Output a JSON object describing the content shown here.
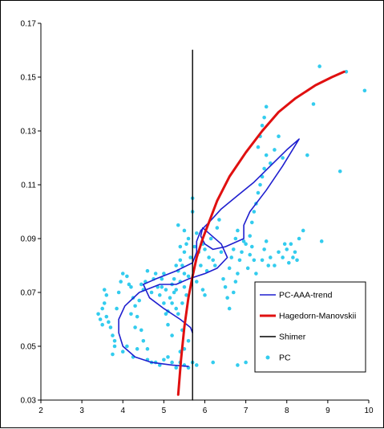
{
  "chart_data": {
    "type": "scatter",
    "title": "",
    "xlabel": "",
    "ylabel": "",
    "xlim": [
      2,
      10
    ],
    "ylim": [
      0.03,
      0.17
    ],
    "x_ticks": [
      "2",
      "3",
      "4",
      "5",
      "6",
      "7",
      "8",
      "9",
      "10"
    ],
    "y_ticks": [
      "0.03",
      "0.05",
      "0.07",
      "0.09",
      "0.11",
      "0.13",
      "0.15",
      "0.17"
    ],
    "grid": false,
    "legend_position": "lower-right",
    "colors": {
      "pc_aaa_trend": "#1f1fcf",
      "hagedorn": "#e01010",
      "shimer": "#000000",
      "pc": "#33ccee"
    },
    "series": [
      {
        "name": "PC-AAA-trend",
        "type": "line",
        "points": [
          [
            5.6,
            0.0425
          ],
          [
            5.2,
            0.043
          ],
          [
            4.7,
            0.044
          ],
          [
            4.3,
            0.046
          ],
          [
            4.0,
            0.05
          ],
          [
            3.9,
            0.055
          ],
          [
            3.9,
            0.06
          ],
          [
            4.05,
            0.065
          ],
          [
            4.4,
            0.07
          ],
          [
            4.9,
            0.073
          ],
          [
            5.3,
            0.073
          ],
          [
            5.6,
            0.075
          ],
          [
            6.0,
            0.077
          ],
          [
            6.3,
            0.079
          ],
          [
            6.55,
            0.083
          ],
          [
            6.4,
            0.088
          ],
          [
            6.1,
            0.092
          ],
          [
            5.95,
            0.094
          ],
          [
            5.9,
            0.091
          ],
          [
            6.0,
            0.088
          ],
          [
            6.2,
            0.086
          ],
          [
            6.5,
            0.087
          ],
          [
            6.8,
            0.089
          ],
          [
            6.95,
            0.09
          ],
          [
            6.95,
            0.095
          ],
          [
            7.1,
            0.1
          ],
          [
            7.5,
            0.108
          ],
          [
            7.9,
            0.117
          ],
          [
            8.3,
            0.127
          ],
          [
            8.0,
            0.123
          ],
          [
            7.6,
            0.117
          ],
          [
            7.2,
            0.111
          ],
          [
            6.8,
            0.106
          ],
          [
            6.4,
            0.101
          ],
          [
            6.1,
            0.096
          ],
          [
            5.9,
            0.093
          ],
          [
            5.8,
            0.089
          ],
          [
            5.8,
            0.085
          ],
          [
            5.7,
            0.081
          ],
          [
            5.3,
            0.078
          ],
          [
            4.8,
            0.075
          ],
          [
            4.5,
            0.073
          ],
          [
            4.65,
            0.068
          ],
          [
            5.0,
            0.064
          ],
          [
            5.4,
            0.06
          ],
          [
            5.65,
            0.057
          ],
          [
            5.7,
            0.055
          ]
        ]
      },
      {
        "name": "Hagedorn-Manovskii",
        "type": "line",
        "points": [
          [
            5.35,
            0.032
          ],
          [
            5.42,
            0.045
          ],
          [
            5.5,
            0.057
          ],
          [
            5.6,
            0.068
          ],
          [
            5.7,
            0.076
          ],
          [
            5.8,
            0.083
          ],
          [
            5.95,
            0.09
          ],
          [
            6.1,
            0.096
          ],
          [
            6.3,
            0.104
          ],
          [
            6.6,
            0.113
          ],
          [
            7.0,
            0.122
          ],
          [
            7.4,
            0.13
          ],
          [
            7.8,
            0.137
          ],
          [
            8.2,
            0.142
          ],
          [
            8.7,
            0.147
          ],
          [
            9.1,
            0.15
          ],
          [
            9.4,
            0.152
          ]
        ]
      },
      {
        "name": "Shimer",
        "type": "line",
        "points": [
          [
            5.7,
            0.03
          ],
          [
            5.7,
            0.16
          ]
        ]
      },
      {
        "name": "PC",
        "type": "scatter",
        "points": [
          [
            3.4,
            0.062
          ],
          [
            3.45,
            0.06
          ],
          [
            3.5,
            0.058
          ],
          [
            3.55,
            0.066
          ],
          [
            3.6,
            0.069
          ],
          [
            3.55,
            0.071
          ],
          [
            3.6,
            0.061
          ],
          [
            3.7,
            0.057
          ],
          [
            3.75,
            0.054
          ],
          [
            3.8,
            0.05
          ],
          [
            3.75,
            0.047
          ],
          [
            3.8,
            0.052
          ],
          [
            3.85,
            0.064
          ],
          [
            3.9,
            0.07
          ],
          [
            3.95,
            0.074
          ],
          [
            4.0,
            0.077
          ],
          [
            4.1,
            0.076
          ],
          [
            4.15,
            0.073
          ],
          [
            4.2,
            0.072
          ],
          [
            4.25,
            0.068
          ],
          [
            4.3,
            0.065
          ],
          [
            4.2,
            0.062
          ],
          [
            4.1,
            0.05
          ],
          [
            4.0,
            0.048
          ],
          [
            4.3,
            0.057
          ],
          [
            4.35,
            0.061
          ],
          [
            4.4,
            0.067
          ],
          [
            4.45,
            0.073
          ],
          [
            4.5,
            0.071
          ],
          [
            4.55,
            0.074
          ],
          [
            4.6,
            0.078
          ],
          [
            4.7,
            0.07
          ],
          [
            4.75,
            0.075
          ],
          [
            4.8,
            0.077
          ],
          [
            4.85,
            0.072
          ],
          [
            4.9,
            0.069
          ],
          [
            4.95,
            0.075
          ],
          [
            5.0,
            0.077
          ],
          [
            5.0,
            0.066
          ],
          [
            5.05,
            0.062
          ],
          [
            5.1,
            0.058
          ],
          [
            5.2,
            0.054
          ],
          [
            5.15,
            0.068
          ],
          [
            5.2,
            0.073
          ],
          [
            5.25,
            0.075
          ],
          [
            5.3,
            0.071
          ],
          [
            5.35,
            0.078
          ],
          [
            5.4,
            0.074
          ],
          [
            5.45,
            0.066
          ],
          [
            5.5,
            0.072
          ],
          [
            5.55,
            0.069
          ],
          [
            5.6,
            0.076
          ],
          [
            5.3,
            0.08
          ],
          [
            5.4,
            0.082
          ],
          [
            5.5,
            0.085
          ],
          [
            5.55,
            0.088
          ],
          [
            5.6,
            0.09
          ],
          [
            5.65,
            0.083
          ],
          [
            5.5,
            0.093
          ],
          [
            5.35,
            0.095
          ],
          [
            5.4,
            0.087
          ],
          [
            5.7,
            0.1
          ],
          [
            5.7,
            0.105
          ],
          [
            5.8,
            0.092
          ],
          [
            5.85,
            0.085
          ],
          [
            5.9,
            0.08
          ],
          [
            5.95,
            0.088
          ],
          [
            6.0,
            0.086
          ],
          [
            6.05,
            0.078
          ],
          [
            6.1,
            0.083
          ],
          [
            6.15,
            0.09
          ],
          [
            6.2,
            0.082
          ],
          [
            6.25,
            0.08
          ],
          [
            6.3,
            0.094
          ],
          [
            6.35,
            0.097
          ],
          [
            6.4,
            0.085
          ],
          [
            6.45,
            0.075
          ],
          [
            6.5,
            0.072
          ],
          [
            6.55,
            0.068
          ],
          [
            6.6,
            0.064
          ],
          [
            6.7,
            0.07
          ],
          [
            6.75,
            0.074
          ],
          [
            6.8,
            0.077
          ],
          [
            6.85,
            0.082
          ],
          [
            6.9,
            0.085
          ],
          [
            6.95,
            0.089
          ],
          [
            7.0,
            0.088
          ],
          [
            7.05,
            0.079
          ],
          [
            7.1,
            0.084
          ],
          [
            7.15,
            0.096
          ],
          [
            7.2,
            0.1
          ],
          [
            7.25,
            0.103
          ],
          [
            7.3,
            0.107
          ],
          [
            7.35,
            0.11
          ],
          [
            7.4,
            0.113
          ],
          [
            7.45,
            0.116
          ],
          [
            7.5,
            0.121
          ],
          [
            7.3,
            0.124
          ],
          [
            7.35,
            0.128
          ],
          [
            7.4,
            0.132
          ],
          [
            7.45,
            0.135
          ],
          [
            7.5,
            0.139
          ],
          [
            7.6,
            0.118
          ],
          [
            7.7,
            0.123
          ],
          [
            7.8,
            0.128
          ],
          [
            7.9,
            0.12
          ],
          [
            7.55,
            0.08
          ],
          [
            7.6,
            0.083
          ],
          [
            7.7,
            0.08
          ],
          [
            7.8,
            0.085
          ],
          [
            7.9,
            0.083
          ],
          [
            8.0,
            0.086
          ],
          [
            8.1,
            0.088
          ],
          [
            8.2,
            0.085
          ],
          [
            8.3,
            0.09
          ],
          [
            8.4,
            0.093
          ],
          [
            8.5,
            0.121
          ],
          [
            8.65,
            0.14
          ],
          [
            8.8,
            0.154
          ],
          [
            8.85,
            0.089
          ],
          [
            9.3,
            0.115
          ],
          [
            9.9,
            0.145
          ],
          [
            9.45,
            0.152
          ],
          [
            4.6,
            0.045
          ],
          [
            4.7,
            0.044
          ],
          [
            4.8,
            0.044
          ],
          [
            4.9,
            0.043
          ],
          [
            5.0,
            0.045
          ],
          [
            5.1,
            0.046
          ],
          [
            5.2,
            0.044
          ],
          [
            5.3,
            0.042
          ],
          [
            5.4,
            0.044
          ],
          [
            5.5,
            0.043
          ],
          [
            5.6,
            0.042
          ],
          [
            5.7,
            0.044
          ],
          [
            5.8,
            0.043
          ],
          [
            6.2,
            0.044
          ],
          [
            6.8,
            0.043
          ],
          [
            7.0,
            0.044
          ],
          [
            5.35,
            0.062
          ],
          [
            5.45,
            0.056
          ],
          [
            5.1,
            0.063
          ],
          [
            5.2,
            0.066
          ],
          [
            5.3,
            0.064
          ],
          [
            5.6,
            0.052
          ],
          [
            5.5,
            0.049
          ],
          [
            5.4,
            0.048
          ],
          [
            4.95,
            0.072
          ],
          [
            5.05,
            0.071
          ],
          [
            5.25,
            0.07
          ],
          [
            5.45,
            0.08
          ],
          [
            5.5,
            0.077
          ],
          [
            5.75,
            0.087
          ],
          [
            5.8,
            0.074
          ],
          [
            5.95,
            0.071
          ],
          [
            6.0,
            0.069
          ],
          [
            6.6,
            0.079
          ],
          [
            6.65,
            0.083
          ],
          [
            6.7,
            0.086
          ],
          [
            6.75,
            0.09
          ],
          [
            6.8,
            0.093
          ],
          [
            4.5,
            0.052
          ],
          [
            4.45,
            0.056
          ],
          [
            4.35,
            0.049
          ],
          [
            4.25,
            0.046
          ],
          [
            4.6,
            0.049
          ],
          [
            3.5,
            0.064
          ],
          [
            3.65,
            0.059
          ],
          [
            7.1,
            0.091
          ],
          [
            7.15,
            0.087
          ],
          [
            7.2,
            0.082
          ],
          [
            7.25,
            0.077
          ],
          [
            7.4,
            0.082
          ],
          [
            7.45,
            0.086
          ],
          [
            7.5,
            0.089
          ],
          [
            7.95,
            0.088
          ],
          [
            8.05,
            0.081
          ],
          [
            8.15,
            0.083
          ],
          [
            8.25,
            0.082
          ]
        ]
      }
    ]
  }
}
